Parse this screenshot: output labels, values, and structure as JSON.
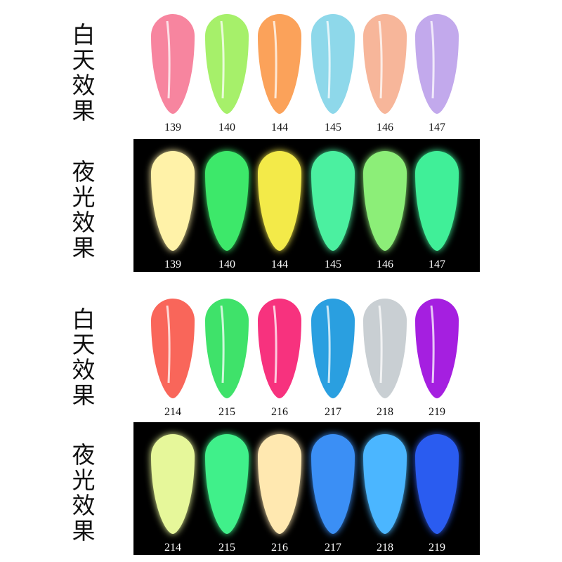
{
  "sections": [
    {
      "label": "白天效果",
      "background": "#ffffff",
      "text_color": "#111111",
      "swatches": [
        {
          "code": "139",
          "color": "#f7859f"
        },
        {
          "code": "140",
          "color": "#a6f06a"
        },
        {
          "code": "144",
          "color": "#fba25a"
        },
        {
          "code": "145",
          "color": "#8ed8ea"
        },
        {
          "code": "146",
          "color": "#f7b69a"
        },
        {
          "code": "147",
          "color": "#c2a9ec"
        }
      ]
    },
    {
      "label": "夜光效果",
      "background": "#000000",
      "text_color": "#ffffff",
      "swatches": [
        {
          "code": "139",
          "color": "#fff2a8"
        },
        {
          "code": "140",
          "color": "#3ee86a"
        },
        {
          "code": "144",
          "color": "#f3ea4a"
        },
        {
          "code": "145",
          "color": "#4cf0a0"
        },
        {
          "code": "146",
          "color": "#8cee78"
        },
        {
          "code": "147",
          "color": "#40ef98"
        }
      ]
    },
    {
      "label": "白天效果",
      "background": "#ffffff",
      "text_color": "#111111",
      "swatches": [
        {
          "code": "214",
          "color": "#f9665a"
        },
        {
          "code": "215",
          "color": "#3fe26a"
        },
        {
          "code": "216",
          "color": "#f7327e"
        },
        {
          "code": "217",
          "color": "#2a9fe0"
        },
        {
          "code": "218",
          "color": "#c9cfd3"
        },
        {
          "code": "219",
          "color": "#a51fe0"
        }
      ]
    },
    {
      "label": "夜光效果",
      "background": "#000000",
      "text_color": "#ffffff",
      "swatches": [
        {
          "code": "214",
          "color": "#e6f79a"
        },
        {
          "code": "215",
          "color": "#3ff08a"
        },
        {
          "code": "216",
          "color": "#ffe8b0"
        },
        {
          "code": "217",
          "color": "#3a8ff5"
        },
        {
          "code": "218",
          "color": "#4cb6ff"
        },
        {
          "code": "219",
          "color": "#2a5cf0"
        }
      ]
    }
  ]
}
